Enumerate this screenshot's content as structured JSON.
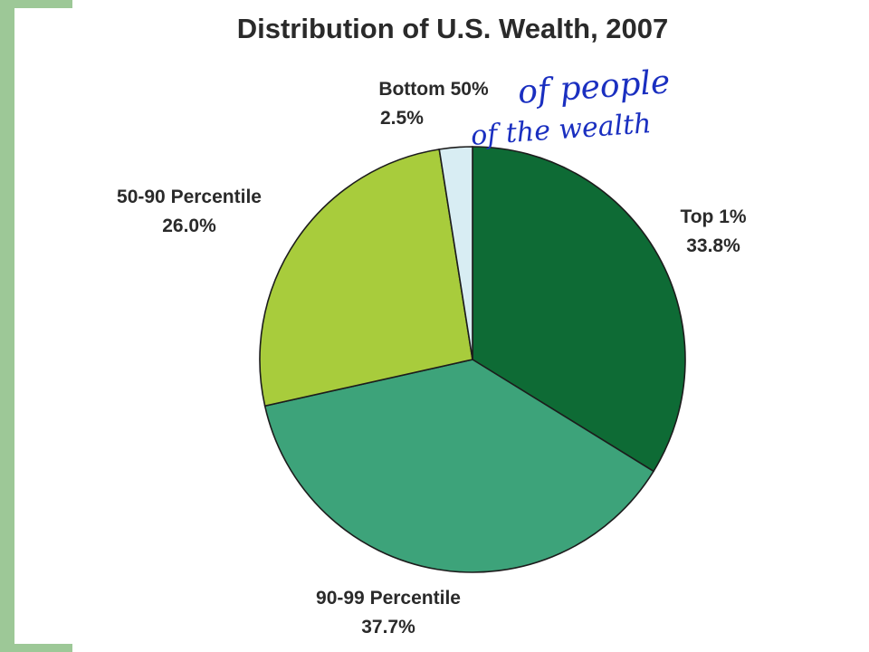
{
  "chart_data": {
    "type": "pie",
    "title": "Distribution of U.S. Wealth, 2007",
    "slices": [
      {
        "label": "Top 1%",
        "value": 33.8,
        "value_label": "33.8%",
        "color": "#0e6b35"
      },
      {
        "label": "90-99 Percentile",
        "value": 37.7,
        "value_label": "37.7%",
        "color": "#3da37a"
      },
      {
        "label": "50-90 Percentile",
        "value": 26.0,
        "value_label": "26.0%",
        "color": "#a8cc3c"
      },
      {
        "label": "Bottom 50%",
        "value": 2.5,
        "value_label": "2.5%",
        "color": "#d8edf3"
      }
    ],
    "annotations": [
      "of people",
      "of the wealth"
    ],
    "annotation_color": "#1a2fc0"
  }
}
